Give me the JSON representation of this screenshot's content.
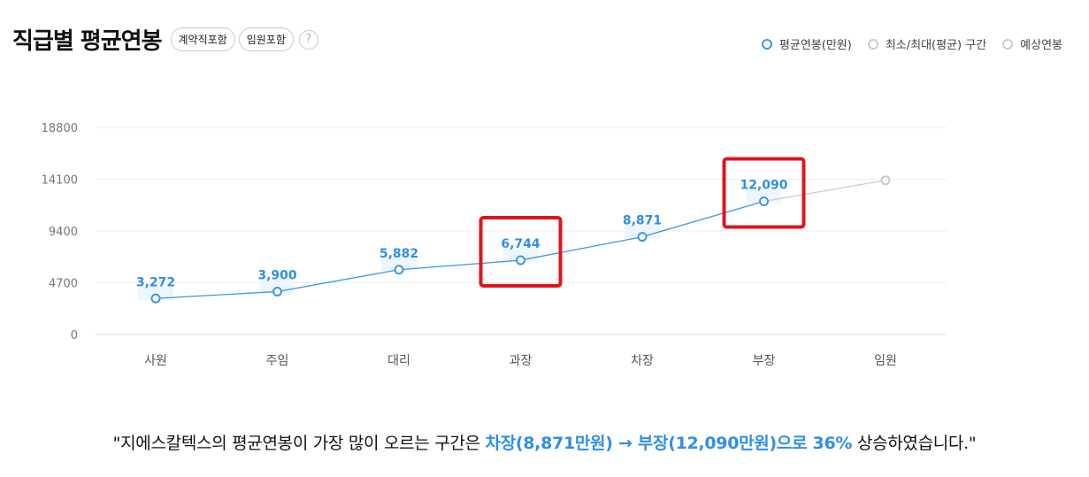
{
  "header": {
    "title": "직급별 평균연봉",
    "chips": [
      "계약직포함",
      "임원포함"
    ],
    "help_icon": "question-circle-icon"
  },
  "legend": [
    {
      "label": "평균연봉(만원)",
      "color": "#3b97e6",
      "active": true
    },
    {
      "label": "최소/최대(평균) 구간",
      "color": "#cccccc",
      "active": false
    },
    {
      "label": "예상연봉",
      "color": "#cccccc",
      "active": false
    }
  ],
  "chart_data": {
    "type": "line",
    "categories": [
      "사원",
      "주임",
      "대리",
      "과장",
      "차장",
      "부장",
      "임원"
    ],
    "series": [
      {
        "name": "평균연봉(만원)",
        "values": [
          3272,
          3900,
          5882,
          6744,
          8871,
          12090,
          null
        ],
        "color": "#3b97e6"
      },
      {
        "name": "예상연봉",
        "values": [
          null,
          null,
          null,
          null,
          null,
          12090,
          14000
        ],
        "color": "#cccccc"
      }
    ],
    "data_labels": [
      "3,272",
      "3,900",
      "5,882",
      "6,744",
      "8,871",
      "12,090",
      ""
    ],
    "highlighted": [
      "과장",
      "부장"
    ],
    "yticks": [
      0,
      4700,
      9400,
      14100,
      18800
    ],
    "ylim": [
      0,
      18800
    ],
    "grid": true
  },
  "summary": {
    "prefix": "\"지에스칼텍스의 평균연봉이 가장 많이 오르는 구간은 ",
    "highlight": "차장(8,871만원) → 부장(12,090만원)으로 36%",
    "suffix": " 상승하였습니다.\""
  }
}
